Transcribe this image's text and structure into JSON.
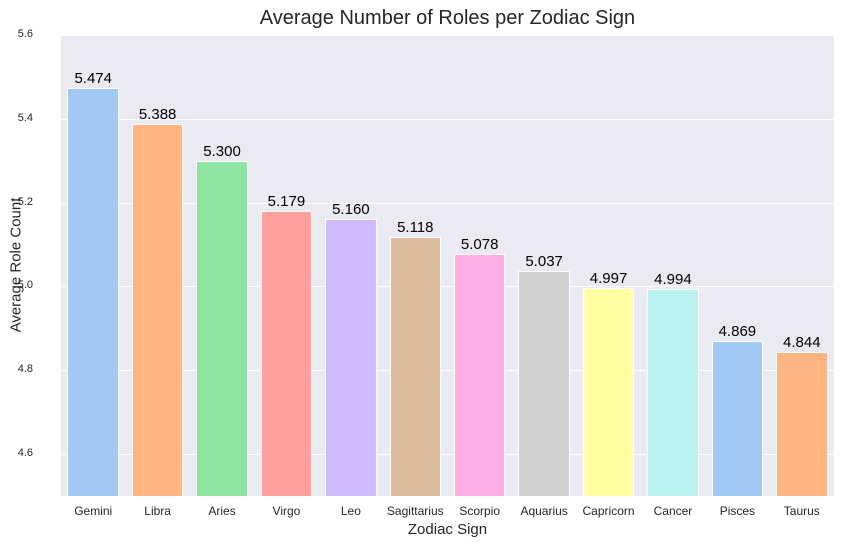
{
  "chart_data": {
    "type": "bar",
    "title": "Average Number of Roles per Zodiac Sign",
    "xlabel": "Zodiac Sign",
    "ylabel": "Average Role Count",
    "ylim": [
      4.5,
      5.6
    ],
    "yticks": [
      "4.6",
      "4.8",
      "5.0",
      "5.2",
      "5.4",
      "5.6"
    ],
    "grid": true,
    "categories": [
      "Gemini",
      "Libra",
      "Aries",
      "Virgo",
      "Leo",
      "Sagittarius",
      "Scorpio",
      "Aquarius",
      "Capricorn",
      "Cancer",
      "Pisces",
      "Taurus"
    ],
    "values": [
      5.474,
      5.388,
      5.3,
      5.179,
      5.16,
      5.118,
      5.078,
      5.037,
      4.997,
      4.994,
      4.869,
      4.844
    ],
    "value_labels": [
      "5.474",
      "5.388",
      "5.300",
      "5.179",
      "5.160",
      "5.118",
      "5.078",
      "5.037",
      "4.997",
      "4.994",
      "4.869",
      "4.844"
    ],
    "colors": [
      "#a1c9f4",
      "#ffb482",
      "#8de5a1",
      "#ff9f9b",
      "#d0bbff",
      "#debb9b",
      "#fab0e4",
      "#cfcfcf",
      "#fffea3",
      "#b9f2f0",
      "#a1c9f4",
      "#ffb482"
    ],
    "background": "#eaeaf2"
  }
}
